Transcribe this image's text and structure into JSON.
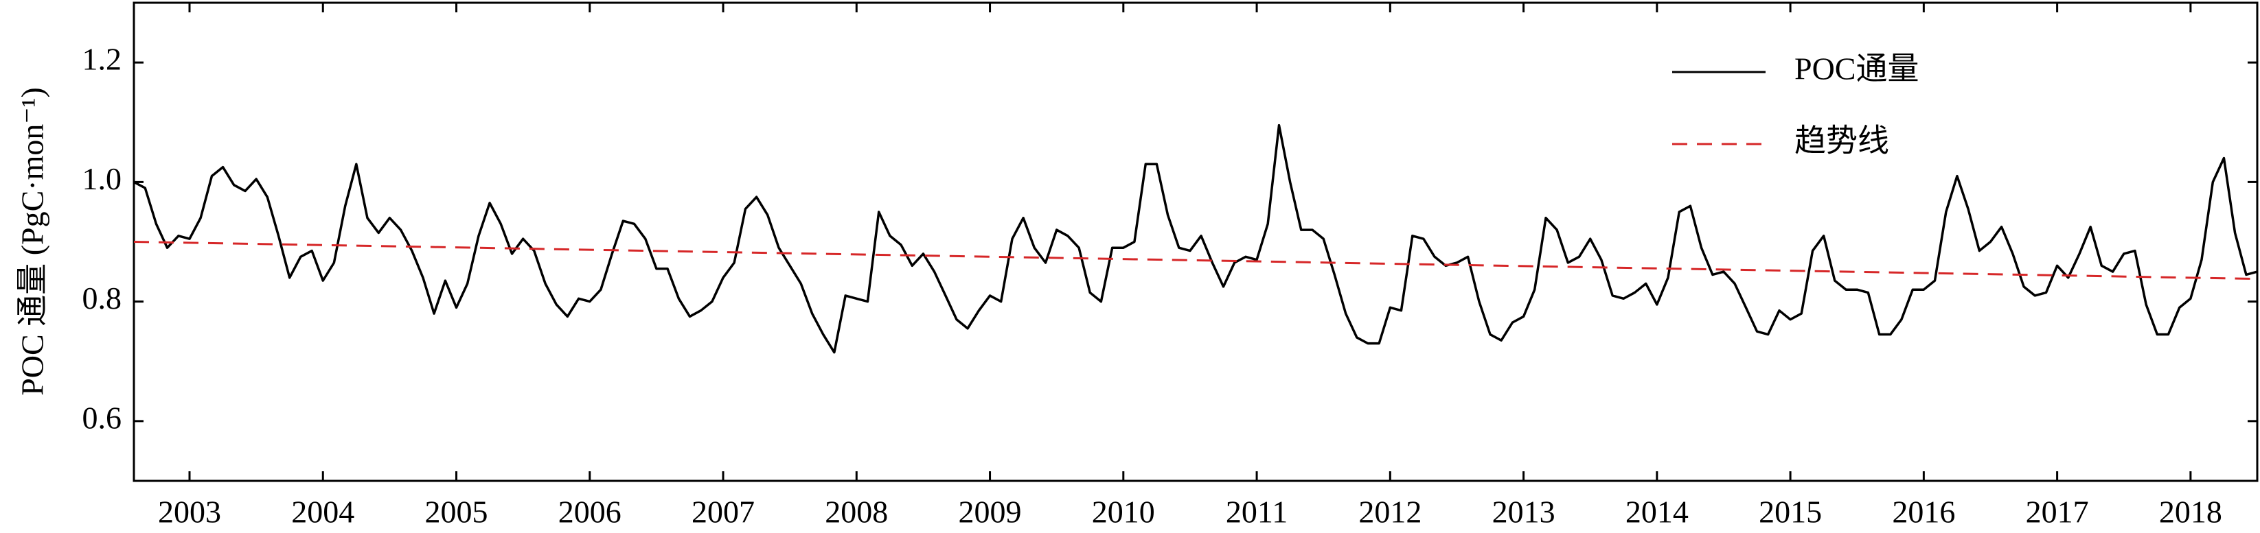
{
  "chart_data": {
    "type": "line",
    "y_label": "POC 通量 (PgC·mon⁻¹)",
    "xlim": [
      2002.583,
      2018.5
    ],
    "ylim": [
      0.5,
      1.3
    ],
    "xticks": [
      2003,
      2004,
      2005,
      2006,
      2007,
      2008,
      2009,
      2010,
      2011,
      2012,
      2013,
      2014,
      2015,
      2016,
      2017,
      2018
    ],
    "yticks": [
      0.6,
      0.8,
      {
        "value": 1,
        "label": "1.0"
      },
      1.2
    ],
    "grid": false,
    "legend": "upper right",
    "series": [
      {
        "name": "POC通量",
        "color": "#000000",
        "dash": false,
        "x": [
          2002.583,
          2002.667,
          2002.75,
          2002.833,
          2002.917,
          2003,
          2003.083,
          2003.167,
          2003.25,
          2003.333,
          2003.417,
          2003.5,
          2003.583,
          2003.667,
          2003.75,
          2003.833,
          2003.917,
          2004,
          2004.083,
          2004.167,
          2004.25,
          2004.333,
          2004.417,
          2004.5,
          2004.583,
          2004.667,
          2004.75,
          2004.833,
          2004.917,
          2005,
          2005.083,
          2005.167,
          2005.25,
          2005.333,
          2005.417,
          2005.5,
          2005.583,
          2005.667,
          2005.75,
          2005.833,
          2005.917,
          2006,
          2006.083,
          2006.167,
          2006.25,
          2006.333,
          2006.417,
          2006.5,
          2006.583,
          2006.667,
          2006.75,
          2006.833,
          2006.917,
          2007,
          2007.083,
          2007.167,
          2007.25,
          2007.333,
          2007.417,
          2007.5,
          2007.583,
          2007.667,
          2007.75,
          2007.833,
          2007.917,
          2008,
          2008.083,
          2008.167,
          2008.25,
          2008.333,
          2008.417,
          2008.5,
          2008.583,
          2008.667,
          2008.75,
          2008.833,
          2008.917,
          2009,
          2009.083,
          2009.167,
          2009.25,
          2009.333,
          2009.417,
          2009.5,
          2009.583,
          2009.667,
          2009.75,
          2009.833,
          2009.917,
          2010,
          2010.083,
          2010.167,
          2010.25,
          2010.333,
          2010.417,
          2010.5,
          2010.583,
          2010.667,
          2010.75,
          2010.833,
          2010.917,
          2011,
          2011.083,
          2011.167,
          2011.25,
          2011.333,
          2011.417,
          2011.5,
          2011.583,
          2011.667,
          2011.75,
          2011.833,
          2011.917,
          2012,
          2012.083,
          2012.167,
          2012.25,
          2012.333,
          2012.417,
          2012.5,
          2012.583,
          2012.667,
          2012.75,
          2012.833,
          2012.917,
          2013,
          2013.083,
          2013.167,
          2013.25,
          2013.333,
          2013.417,
          2013.5,
          2013.583,
          2013.667,
          2013.75,
          2013.833,
          2013.917,
          2014,
          2014.083,
          2014.167,
          2014.25,
          2014.333,
          2014.417,
          2014.5,
          2014.583,
          2014.667,
          2014.75,
          2014.833,
          2014.917,
          2015,
          2015.083,
          2015.167,
          2015.25,
          2015.333,
          2015.417,
          2015.5,
          2015.583,
          2015.667,
          2015.75,
          2015.833,
          2015.917,
          2016,
          2016.083,
          2016.167,
          2016.25,
          2016.333,
          2016.417,
          2016.5,
          2016.583,
          2016.667,
          2016.75,
          2016.833,
          2016.917,
          2017,
          2017.083,
          2017.167,
          2017.25,
          2017.333,
          2017.417,
          2017.5,
          2017.583,
          2017.667,
          2017.75,
          2017.833,
          2017.917,
          2018,
          2018.083,
          2018.167,
          2018.25,
          2018.333,
          2018.417,
          2018.5
        ],
        "values": [
          1.0,
          0.99,
          0.93,
          0.89,
          0.91,
          0.905,
          0.94,
          1.01,
          1.025,
          0.995,
          0.985,
          1.005,
          0.975,
          0.91,
          0.84,
          0.875,
          0.885,
          0.835,
          0.865,
          0.96,
          1.03,
          0.94,
          0.915,
          0.94,
          0.92,
          0.885,
          0.84,
          0.78,
          0.835,
          0.79,
          0.83,
          0.91,
          0.965,
          0.93,
          0.88,
          0.905,
          0.885,
          0.83,
          0.795,
          0.775,
          0.805,
          0.8,
          0.82,
          0.88,
          0.935,
          0.93,
          0.905,
          0.855,
          0.855,
          0.805,
          0.775,
          0.785,
          0.8,
          0.84,
          0.865,
          0.955,
          0.975,
          0.945,
          0.89,
          0.86,
          0.83,
          0.78,
          0.745,
          0.715,
          0.81,
          0.805,
          0.8,
          0.95,
          0.91,
          0.895,
          0.86,
          0.88,
          0.85,
          0.81,
          0.77,
          0.755,
          0.785,
          0.81,
          0.8,
          0.905,
          0.94,
          0.89,
          0.865,
          0.92,
          0.91,
          0.89,
          0.815,
          0.8,
          0.89,
          0.89,
          0.9,
          1.03,
          1.03,
          0.945,
          0.89,
          0.885,
          0.91,
          0.865,
          0.825,
          0.865,
          0.875,
          0.87,
          0.93,
          1.095,
          1.0,
          0.92,
          0.92,
          0.905,
          0.845,
          0.78,
          0.74,
          0.73,
          0.73,
          0.79,
          0.785,
          0.91,
          0.905,
          0.875,
          0.86,
          0.865,
          0.875,
          0.8,
          0.745,
          0.735,
          0.765,
          0.775,
          0.82,
          0.94,
          0.92,
          0.865,
          0.875,
          0.905,
          0.87,
          0.81,
          0.805,
          0.815,
          0.83,
          0.795,
          0.84,
          0.95,
          0.96,
          0.89,
          0.845,
          0.85,
          0.83,
          0.79,
          0.75,
          0.745,
          0.785,
          0.77,
          0.78,
          0.885,
          0.91,
          0.835,
          0.82,
          0.82,
          0.815,
          0.745,
          0.745,
          0.77,
          0.82,
          0.82,
          0.835,
          0.95,
          1.01,
          0.955,
          0.885,
          0.9,
          0.925,
          0.88,
          0.825,
          0.81,
          0.815,
          0.86,
          0.84,
          0.88,
          0.925,
          0.86,
          0.85,
          0.88,
          0.885,
          0.795,
          0.745,
          0.745,
          0.79,
          0.805,
          0.87,
          1.0,
          1.04,
          0.915,
          0.845,
          0.85
        ]
      },
      {
        "name": "趋势线",
        "color": "#d62728",
        "dash": true,
        "x": [
          2002.583,
          2018.5
        ],
        "values": [
          0.9,
          0.838
        ]
      }
    ]
  }
}
